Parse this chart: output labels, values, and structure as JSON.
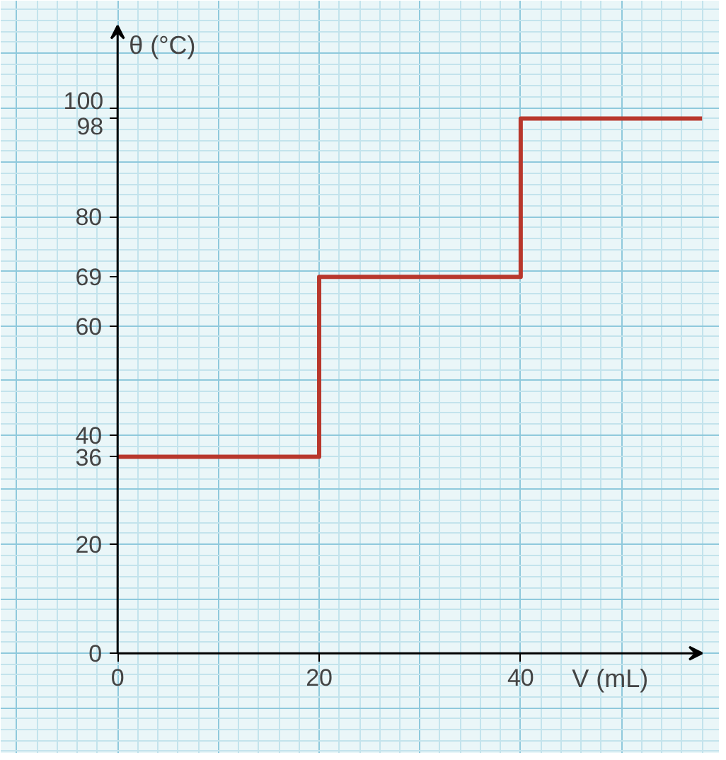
{
  "chart_data": {
    "type": "step",
    "xlabel": "V (mL)",
    "ylabel": "θ (°C)",
    "x": [
      0,
      20,
      40,
      58
    ],
    "values": [
      36,
      69,
      98,
      98
    ],
    "color": "#b8372c",
    "xlim": [
      0,
      58
    ],
    "ylim": [
      0,
      115
    ],
    "xticks": [
      0,
      20,
      40
    ],
    "yticks": [
      0,
      20,
      36,
      40,
      60,
      69,
      80,
      98,
      100
    ],
    "grid": true
  }
}
